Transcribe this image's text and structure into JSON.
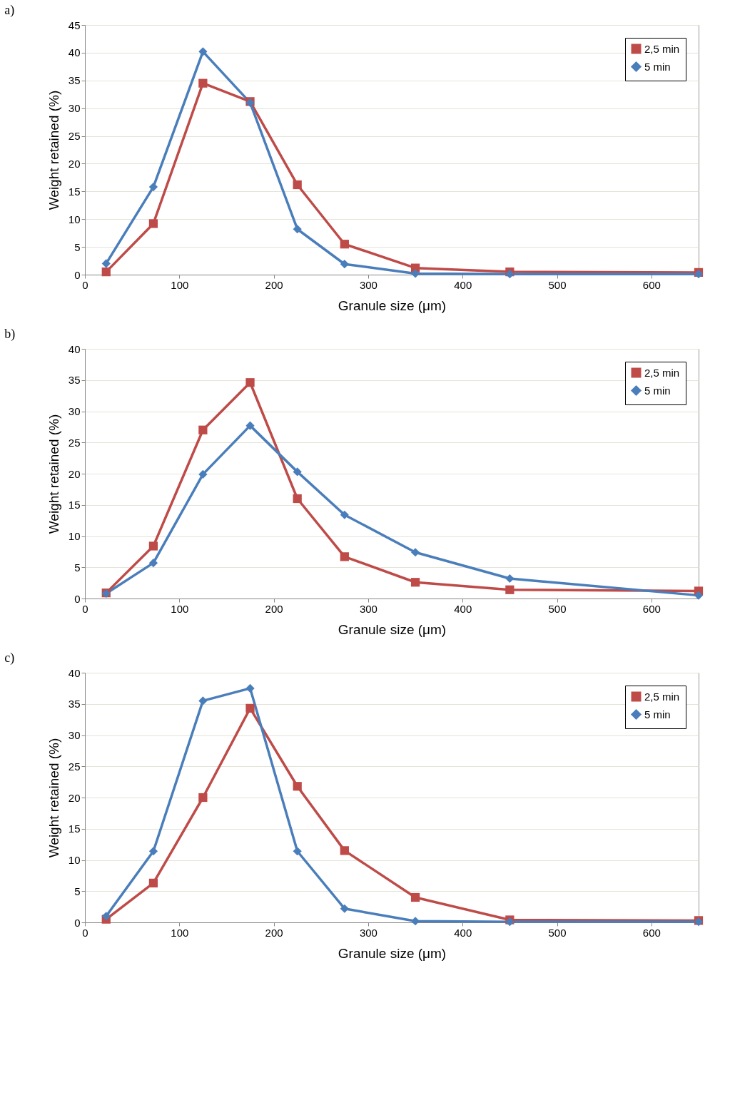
{
  "chart_data": [
    {
      "type": "line",
      "title": "a)",
      "xlabel": "Granule size (μm)",
      "ylabel": "Weight retained (%)",
      "x": [
        22.5,
        72.5,
        125,
        175,
        225,
        275,
        350,
        450,
        650
      ],
      "xlim": [
        0,
        650
      ],
      "xticks": [
        0,
        100,
        200,
        300,
        400,
        500,
        600
      ],
      "ylim": [
        0,
        45
      ],
      "yticks": [
        0,
        5,
        10,
        15,
        20,
        25,
        30,
        35,
        40,
        45
      ],
      "grid": "y",
      "legend": "top right",
      "line_style": "solid",
      "series": [
        {
          "name": "2,5 min",
          "color": "#be4b48",
          "marker": "square",
          "values": [
            0.5,
            9.2,
            34.5,
            31.2,
            16.2,
            5.5,
            1.2,
            0.5,
            0.4
          ]
        },
        {
          "name": "5 min",
          "color": "#4a7ebb",
          "marker": "diamond",
          "values": [
            2.0,
            15.8,
            40.2,
            31.0,
            8.2,
            1.9,
            0.2,
            0.1,
            0.1
          ]
        }
      ]
    },
    {
      "type": "line",
      "title": "b)",
      "xlabel": "Granule size (μm)",
      "ylabel": "Weight retained (%)",
      "x": [
        22.5,
        72.5,
        125,
        175,
        225,
        275,
        350,
        450,
        650
      ],
      "xlim": [
        0,
        650
      ],
      "xticks": [
        0,
        100,
        200,
        300,
        400,
        500,
        600
      ],
      "ylim": [
        0,
        40
      ],
      "yticks": [
        0,
        5,
        10,
        15,
        20,
        25,
        30,
        35,
        40
      ],
      "grid": "y",
      "legend": "top right",
      "line_style": "solid",
      "series": [
        {
          "name": "2,5 min",
          "color": "#be4b48",
          "marker": "square",
          "values": [
            0.9,
            8.4,
            27.0,
            34.6,
            16.0,
            6.7,
            2.6,
            1.4,
            1.2
          ]
        },
        {
          "name": "5 min",
          "color": "#4a7ebb",
          "marker": "diamond",
          "values": [
            0.8,
            5.7,
            19.9,
            27.7,
            20.3,
            13.4,
            7.4,
            3.2,
            0.5
          ]
        }
      ]
    },
    {
      "type": "line",
      "title": "c)",
      "xlabel": "Granule size (μm)",
      "ylabel": "Weight retained (%)",
      "x": [
        22.5,
        72.5,
        125,
        175,
        225,
        275,
        350,
        450,
        650
      ],
      "xlim": [
        0,
        650
      ],
      "xticks": [
        0,
        100,
        200,
        300,
        400,
        500,
        600
      ],
      "ylim": [
        0,
        40
      ],
      "yticks": [
        0,
        5,
        10,
        15,
        20,
        25,
        30,
        35,
        40
      ],
      "grid": "y",
      "legend": "top right",
      "line_style": "solid",
      "series": [
        {
          "name": "2,5 min",
          "color": "#be4b48",
          "marker": "square",
          "values": [
            0.5,
            6.3,
            20.0,
            34.3,
            21.8,
            11.5,
            4.0,
            0.4,
            0.3
          ]
        },
        {
          "name": "5 min",
          "color": "#4a7ebb",
          "marker": "diamond",
          "values": [
            1.0,
            11.4,
            35.5,
            37.5,
            11.4,
            2.2,
            0.2,
            0.1,
            0.1
          ]
        }
      ]
    }
  ]
}
